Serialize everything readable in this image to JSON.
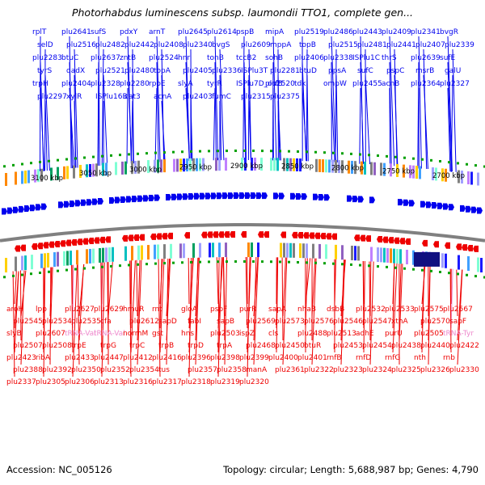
{
  "title": "Photorhabdus luminescens subsp. laumondii TTO1, complete gen...",
  "footer": {
    "accession_label": "Accession:",
    "accession": "NC_005126",
    "topology_label": "Topology:",
    "topology": "circular",
    "length_label": "Length:",
    "length": "5,688,987 bp",
    "genes_label": "Genes:",
    "genes": "4,790"
  },
  "colors": {
    "forward": "#0000ee",
    "reverse": "#ee0000",
    "trna": "#ee88cc",
    "backbone": "#808080",
    "dots": "#00a000"
  },
  "kbp_ticks": [
    "3100 kbp",
    "3050 kbp",
    "3000 kbp",
    "2950 kbp",
    "2900 kbp",
    "2850 kbp",
    "2800 kbp",
    "2750 kbp",
    "2700 kbp"
  ],
  "top_labels": [
    "rplT",
    "plu2641",
    "sufS",
    "pdxY",
    "arnT",
    "plu2645",
    "plu2614",
    "pspB",
    "mipA",
    "plu2519",
    "plu2486",
    "plu2443",
    "plu2409",
    "plu2341",
    "bvgR",
    "selD",
    "plu2516",
    "plu2482",
    "plu2442",
    "plu2408",
    "plu2340",
    "bvgS",
    "plu2609",
    "mppA",
    "topB",
    "plu2515",
    "plu2481",
    "plu2441",
    "plu2407",
    "plu2339",
    "plu2283",
    "btuC",
    "plu2637",
    "zntB",
    "plu2524",
    "hnr",
    "tonB",
    "tccB2",
    "sohB",
    "plu2406",
    "plu2338",
    "ISPlu1C",
    "thrS",
    "plu2639",
    "sufE",
    "tyrS",
    "dadX",
    "plu2521",
    "plu2480",
    "topA",
    "plu2405",
    "plu2336",
    "ISPlu3T",
    "plu2281",
    "btuD",
    "ppsA",
    "sufC",
    "pspC",
    "msrB",
    "galU",
    "trpH",
    "plu2404",
    "plu2328",
    "plu2280",
    "rpoE",
    "slyA",
    "tyrR",
    "ISPlu7D_orfB",
    "plu2520",
    "tdk",
    "ompW",
    "plu2455",
    "acnB",
    "plu2364",
    "plu2327",
    "plu2297",
    "xylR",
    "ISPlu16B",
    "cat3",
    "acnA",
    "plu2403",
    "fumC",
    "plu2315",
    "plu2375"
  ],
  "bottom_labels": [
    "aroH",
    "lpp",
    "plu2627",
    "plu2629",
    "hmuR",
    "rnt",
    "gloA",
    "pspF",
    "purR",
    "sapA",
    "nhaB",
    "dsbB",
    "plu2532",
    "plu2533",
    "plu2575",
    "plu2567",
    "plu2545",
    "plu2534",
    "plu2535",
    "cfa",
    "plu2612",
    "sapD",
    "fabI",
    "sapB",
    "plu2569",
    "plu2573",
    "plu2576",
    "plu2546",
    "plu2547",
    "xthA",
    "plu2570",
    "sapF",
    "slyB",
    "plu2607",
    "tRNA-Val",
    "tRNA-Val",
    "normM",
    "gst",
    "hns",
    "plu2503",
    "ispZ",
    "cls",
    "plu2488",
    "plu2513",
    "adhE",
    "purU",
    "plu2505",
    "tRNA-Tyr",
    "plu2507",
    "plu2508",
    "trpE",
    "trpG",
    "trpC",
    "trpB",
    "trpD",
    "trpA",
    "plu2468",
    "plu2450",
    "btuR",
    "plu2453",
    "plu2454",
    "plu2438",
    "plu2440",
    "plu2422",
    "plu2423",
    "ribA",
    "plu2433",
    "plu2447",
    "plu2412",
    "plu2416",
    "plu2396",
    "plu2398",
    "plu2399",
    "plu2400",
    "plu2401",
    "rnfB",
    "rnfD",
    "rnfG",
    "nth",
    "rnb",
    "plu2388",
    "plu2392",
    "plu2350",
    "plu2352",
    "plu2354",
    "tus",
    "plu2357",
    "plu2358",
    "manA",
    "plu2361",
    "plu2322",
    "plu2323",
    "plu2324",
    "plu2325",
    "plu2326",
    "plu2330",
    "plu2337",
    "plu2305",
    "plu2306",
    "plu2313",
    "plu2316",
    "plu2317",
    "plu2318",
    "plu2319",
    "plu2320"
  ]
}
